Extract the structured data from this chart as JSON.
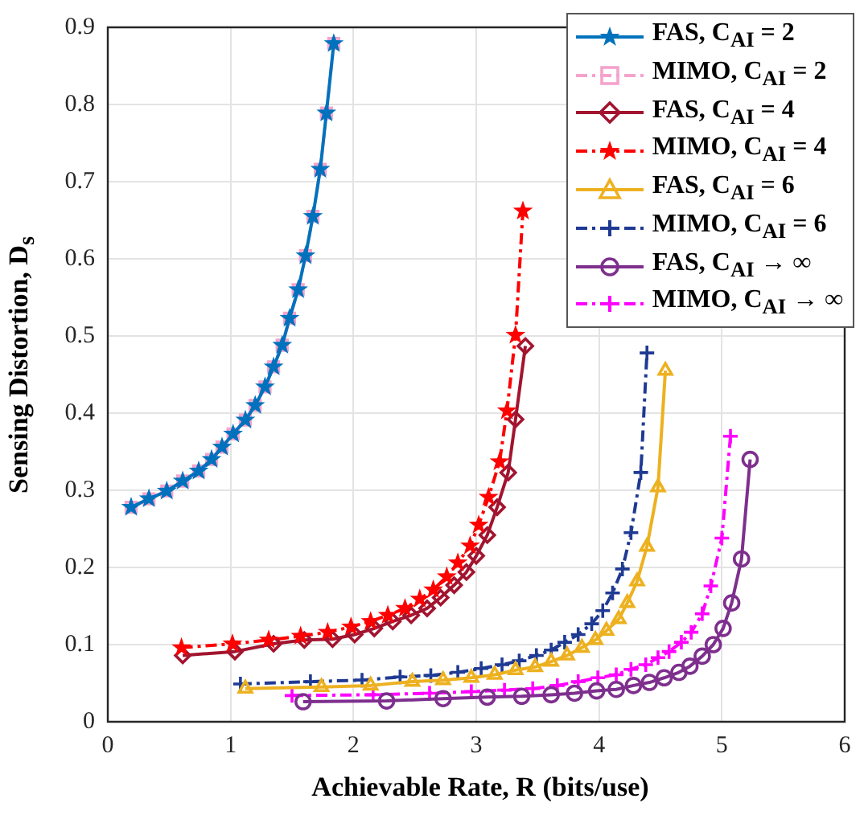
{
  "chart_data": {
    "type": "line",
    "xlabel": "Achievable Rate, R (bits/use)",
    "ylabel": "Sensing Distortion, D$_{s}$",
    "xlim": [
      0,
      6
    ],
    "ylim": [
      0,
      0.9
    ],
    "xticks": [
      0,
      1,
      2,
      3,
      4,
      5,
      6
    ],
    "yticks": [
      0,
      0.1,
      0.2,
      0.3,
      0.4,
      0.5,
      0.6,
      0.7,
      0.8,
      0.9
    ],
    "grid": true,
    "legend": "top right",
    "series": [
      {
        "name": "FAS, C$_{AI}$ = 2",
        "color": "#0072bd",
        "marker": "star",
        "line_style": "solid",
        "x": [
          0.19,
          0.335,
          0.48,
          0.61,
          0.74,
          0.845,
          0.93,
          1.02,
          1.12,
          1.2,
          1.28,
          1.35,
          1.42,
          1.48,
          1.55,
          1.61,
          1.67,
          1.73,
          1.78,
          1.84
        ],
        "values": [
          0.278,
          0.289,
          0.299,
          0.312,
          0.325,
          0.34,
          0.356,
          0.373,
          0.391,
          0.41,
          0.434,
          0.46,
          0.488,
          0.523,
          0.56,
          0.604,
          0.655,
          0.716,
          0.789,
          0.879
        ]
      },
      {
        "name": "MIMO, C$_{AI}$ = 2",
        "color": "#f5a3cc",
        "marker": "square",
        "line_style": "dashed",
        "x": [
          0.19,
          0.335,
          0.48,
          0.61,
          0.74,
          0.845,
          0.93,
          1.02,
          1.12,
          1.2,
          1.28,
          1.35,
          1.42,
          1.48,
          1.55,
          1.61,
          1.67,
          1.73,
          1.78,
          1.84
        ],
        "values": [
          0.278,
          0.289,
          0.299,
          0.312,
          0.325,
          0.34,
          0.356,
          0.373,
          0.391,
          0.41,
          0.434,
          0.46,
          0.488,
          0.523,
          0.56,
          0.604,
          0.655,
          0.716,
          0.789,
          0.879
        ]
      },
      {
        "name": "FAS, C$_{AI}$ = 4",
        "color": "#a2142f",
        "marker": "diamond",
        "line_style": "solid",
        "x": [
          0.61,
          1.035,
          1.35,
          1.6,
          1.83,
          2.01,
          2.17,
          2.32,
          2.47,
          2.6,
          2.71,
          2.82,
          2.92,
          3.0,
          3.09,
          3.17,
          3.26,
          3.32,
          3.4
        ],
        "values": [
          0.086,
          0.091,
          0.101,
          0.106,
          0.107,
          0.113,
          0.121,
          0.13,
          0.138,
          0.147,
          0.161,
          0.177,
          0.194,
          0.215,
          0.242,
          0.278,
          0.323,
          0.392,
          0.487
        ]
      },
      {
        "name": "MIMO, C$_{AI}$ = 4",
        "color": "#ff0000",
        "marker": "star",
        "line_style": "dashed",
        "x": [
          0.6,
          1.015,
          1.31,
          1.57,
          1.79,
          1.98,
          2.14,
          2.28,
          2.42,
          2.54,
          2.65,
          2.76,
          2.85,
          2.95,
          3.02,
          3.1,
          3.19,
          3.25,
          3.32,
          3.38
        ],
        "values": [
          0.096,
          0.101,
          0.106,
          0.111,
          0.116,
          0.123,
          0.13,
          0.138,
          0.147,
          0.159,
          0.171,
          0.188,
          0.206,
          0.228,
          0.255,
          0.291,
          0.337,
          0.403,
          0.501,
          0.662
        ]
      },
      {
        "name": "FAS, C$_{AI}$ = 6",
        "color": "#edb120",
        "marker": "triangle",
        "line_style": "solid",
        "x": [
          1.12,
          1.74,
          2.14,
          2.48,
          2.73,
          2.96,
          3.15,
          3.32,
          3.48,
          3.61,
          3.74,
          3.86,
          3.97,
          4.06,
          4.16,
          4.23,
          4.31,
          4.39,
          4.48,
          4.54
        ],
        "values": [
          0.043,
          0.045,
          0.047,
          0.052,
          0.054,
          0.057,
          0.061,
          0.067,
          0.071,
          0.078,
          0.086,
          0.096,
          0.106,
          0.118,
          0.133,
          0.154,
          0.182,
          0.227,
          0.304,
          0.455
        ]
      },
      {
        "name": "MIMO, C$_{AI}$ = 6",
        "color": "#1f3a93",
        "marker": "cross",
        "line_style": "dashed",
        "x": [
          1.08,
          1.65,
          2.07,
          2.38,
          2.63,
          2.85,
          3.04,
          3.21,
          3.35,
          3.49,
          3.61,
          3.72,
          3.83,
          3.94,
          4.03,
          4.11,
          4.19,
          4.26,
          4.34,
          4.39
        ],
        "values": [
          0.049,
          0.052,
          0.054,
          0.058,
          0.06,
          0.064,
          0.069,
          0.074,
          0.079,
          0.086,
          0.093,
          0.103,
          0.113,
          0.127,
          0.144,
          0.167,
          0.198,
          0.245,
          0.323,
          0.478
        ]
      },
      {
        "name": "FAS, C$_{AI}$ → ∞",
        "color": "#7e2f8e",
        "marker": "circle",
        "line_style": "solid",
        "x": [
          1.59,
          2.27,
          2.73,
          3.09,
          3.37,
          3.61,
          3.8,
          3.98,
          4.14,
          4.28,
          4.41,
          4.53,
          4.65,
          4.74,
          4.84,
          4.93,
          5.01,
          5.08,
          5.16,
          5.23
        ],
        "values": [
          0.026,
          0.027,
          0.03,
          0.032,
          0.033,
          0.035,
          0.037,
          0.04,
          0.042,
          0.047,
          0.051,
          0.057,
          0.064,
          0.072,
          0.085,
          0.1,
          0.121,
          0.154,
          0.211,
          0.34
        ]
      },
      {
        "name": "MIMO, C$_{AI}$ → ∞",
        "color": "#ff00ff",
        "marker": "cross",
        "line_style": "dashed",
        "x": [
          1.5,
          2.16,
          2.62,
          2.96,
          3.23,
          3.46,
          3.66,
          3.83,
          3.99,
          4.14,
          4.26,
          4.38,
          4.48,
          4.57,
          4.67,
          4.75,
          4.84,
          4.91,
          5.0,
          5.07
        ],
        "values": [
          0.034,
          0.035,
          0.037,
          0.039,
          0.041,
          0.043,
          0.047,
          0.052,
          0.057,
          0.061,
          0.068,
          0.074,
          0.083,
          0.091,
          0.103,
          0.116,
          0.14,
          0.176,
          0.238,
          0.37
        ]
      }
    ]
  }
}
